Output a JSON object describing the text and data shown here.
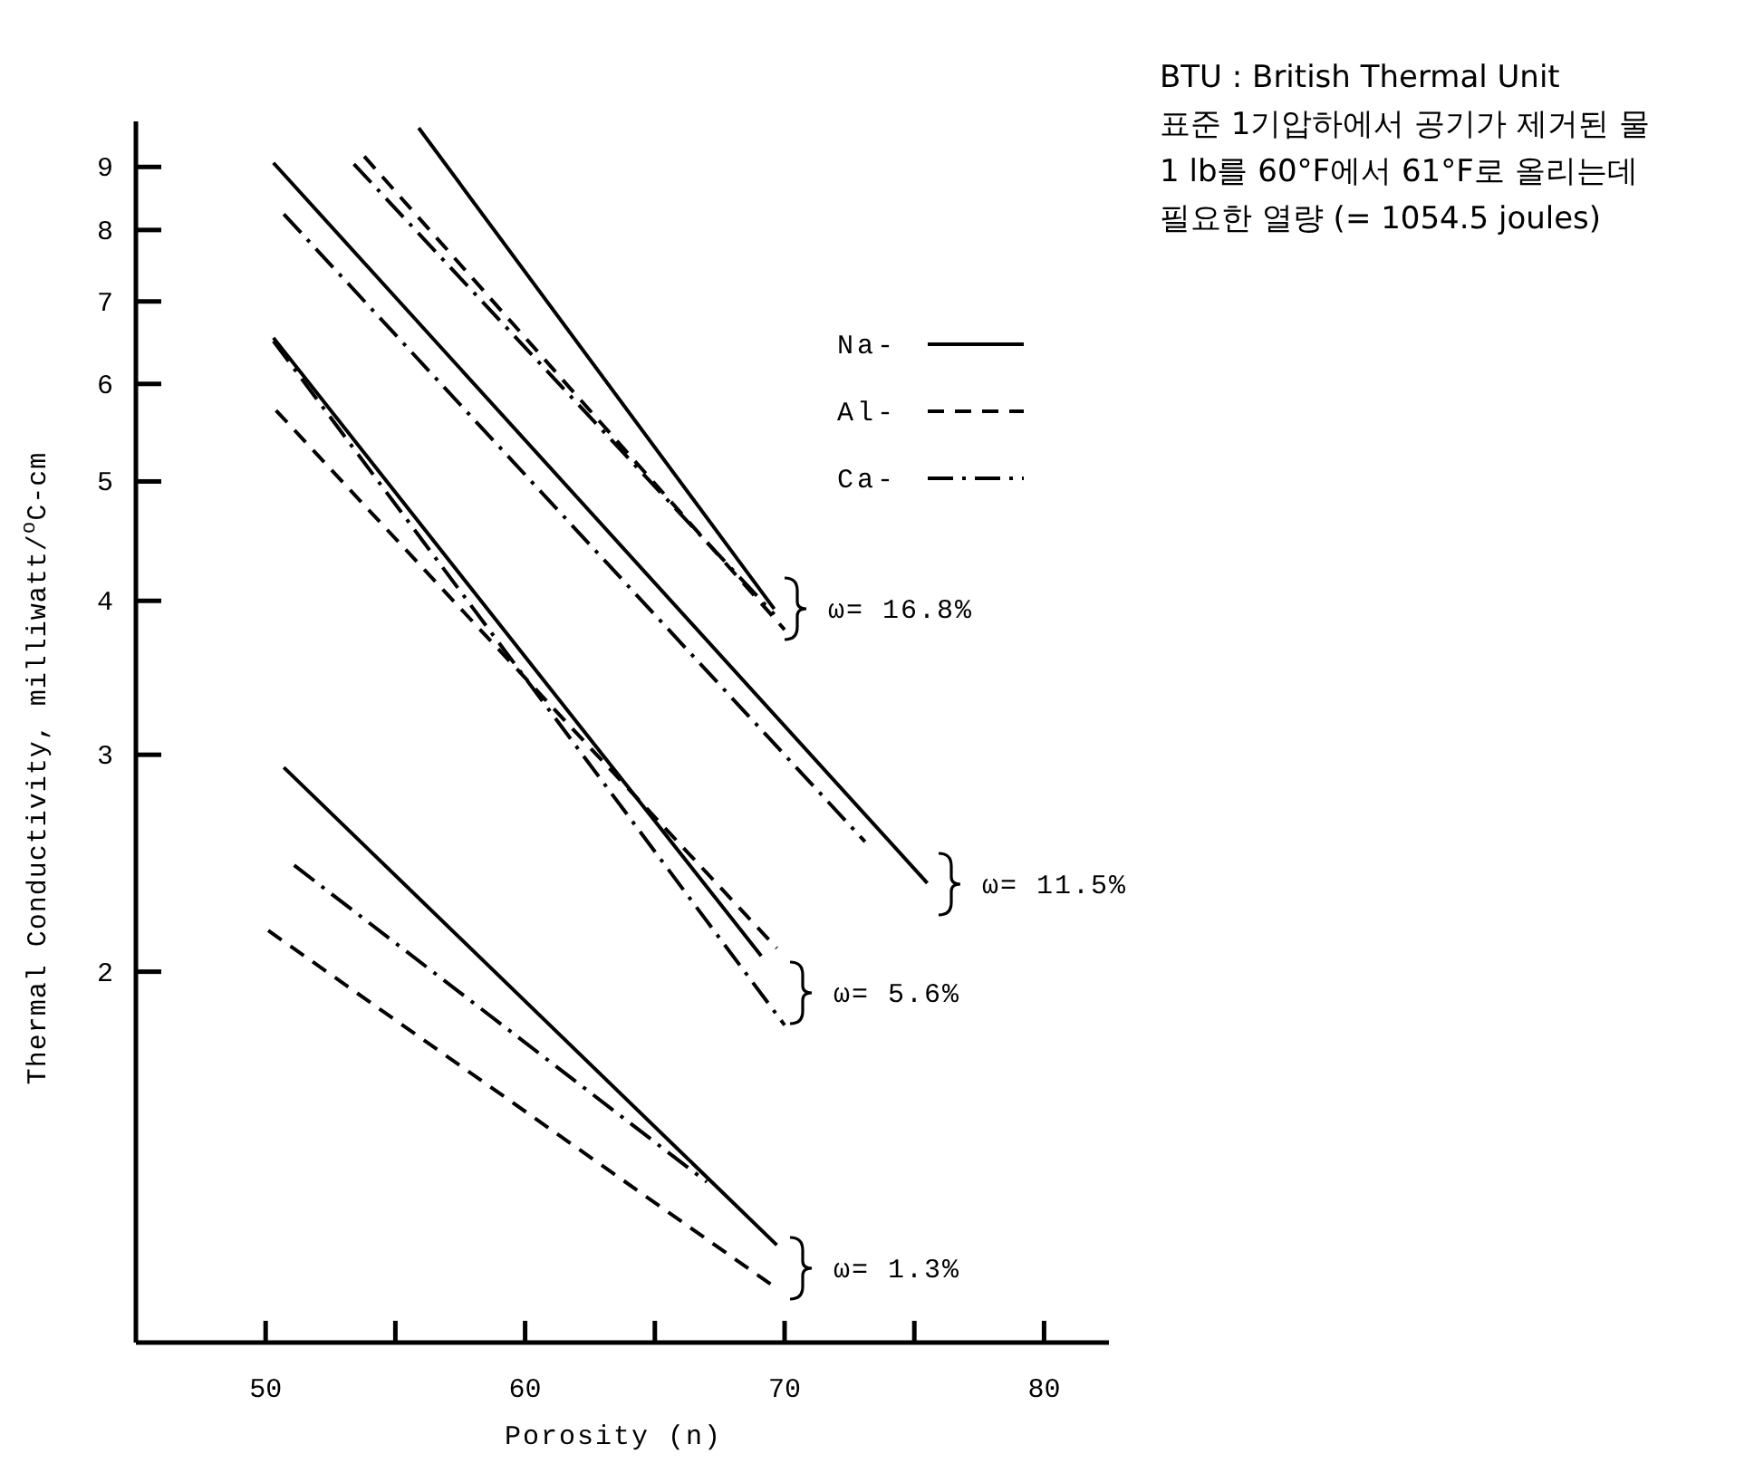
{
  "chart_data": {
    "type": "line",
    "xlabel": "Porosity (n)",
    "ylabel": "Thermal Conductivity, milliwatt/$^{o}$C-cm",
    "log": "y",
    "xlim": [
      45,
      82.5
    ],
    "ylim": [
      1,
      9.8
    ],
    "xticks": [
      50,
      {
        "value": 55,
        "label": null
      },
      60,
      {
        "value": 65,
        "label": null
      },
      70,
      {
        "value": 75,
        "label": null
      },
      80
    ],
    "yticks": [
      2,
      3,
      4,
      5,
      6,
      7,
      8,
      9
    ],
    "grid": false,
    "legend": "top right",
    "marker": "none",
    "series": [
      {
        "name": "Na-",
        "color": "#000000",
        "line_style": "solid",
        "x": [
          55.9,
          69.6
        ],
        "values": [
          9.68,
          3.94
        ]
      },
      {
        "name": "Al-",
        "color": "#000000",
        "line_style": "dashed",
        "x": [
          53.8,
          70.0
        ],
        "values": [
          9.18,
          3.79
        ]
      },
      {
        "name": "Ca-",
        "color": "#000000",
        "line_style": "dashdot",
        "x": [
          53.4,
          69.6
        ],
        "values": [
          9.05,
          3.9
        ]
      },
      {
        "color": "#000000",
        "line_style": "solid",
        "x": [
          50.3,
          75.5
        ],
        "values": [
          9.07,
          2.36
        ]
      },
      {
        "color": "#000000",
        "line_style": "dashdot",
        "x": [
          50.7,
          73.1
        ],
        "values": [
          8.24,
          2.55
        ]
      },
      {
        "color": "#000000",
        "line_style": "solid",
        "x": [
          50.3,
          69.1
        ],
        "values": [
          6.54,
          2.06
        ]
      },
      {
        "color": "#000000",
        "line_style": "dashed",
        "x": [
          50.4,
          69.7
        ],
        "values": [
          5.71,
          2.09
        ]
      },
      {
        "color": "#000000",
        "line_style": "dashdot",
        "x": [
          50.3,
          70.0
        ],
        "values": [
          6.5,
          1.81
        ]
      },
      {
        "color": "#000000",
        "line_style": "solid",
        "x": [
          50.7,
          69.7
        ],
        "values": [
          2.93,
          1.2
        ]
      },
      {
        "color": "#000000",
        "line_style": "dashed",
        "x": [
          50.1,
          69.6
        ],
        "values": [
          2.16,
          1.11
        ]
      },
      {
        "color": "#000000",
        "line_style": "dashdot",
        "x": [
          51.1,
          67.0
        ],
        "values": [
          2.44,
          1.35
        ]
      }
    ],
    "annotations": [
      "ω= 16.8%",
      "ω= 11.5%",
      "ω= 5.6%",
      "ω= 1.3%",
      "BTU : British Thermal Unit",
      "표준 1기압하에서 공기가 제거된 물",
      "1 lb를 60°F에서 61°F로 올리는데",
      "필요한 열량 (= 1054.5 joules)"
    ]
  }
}
